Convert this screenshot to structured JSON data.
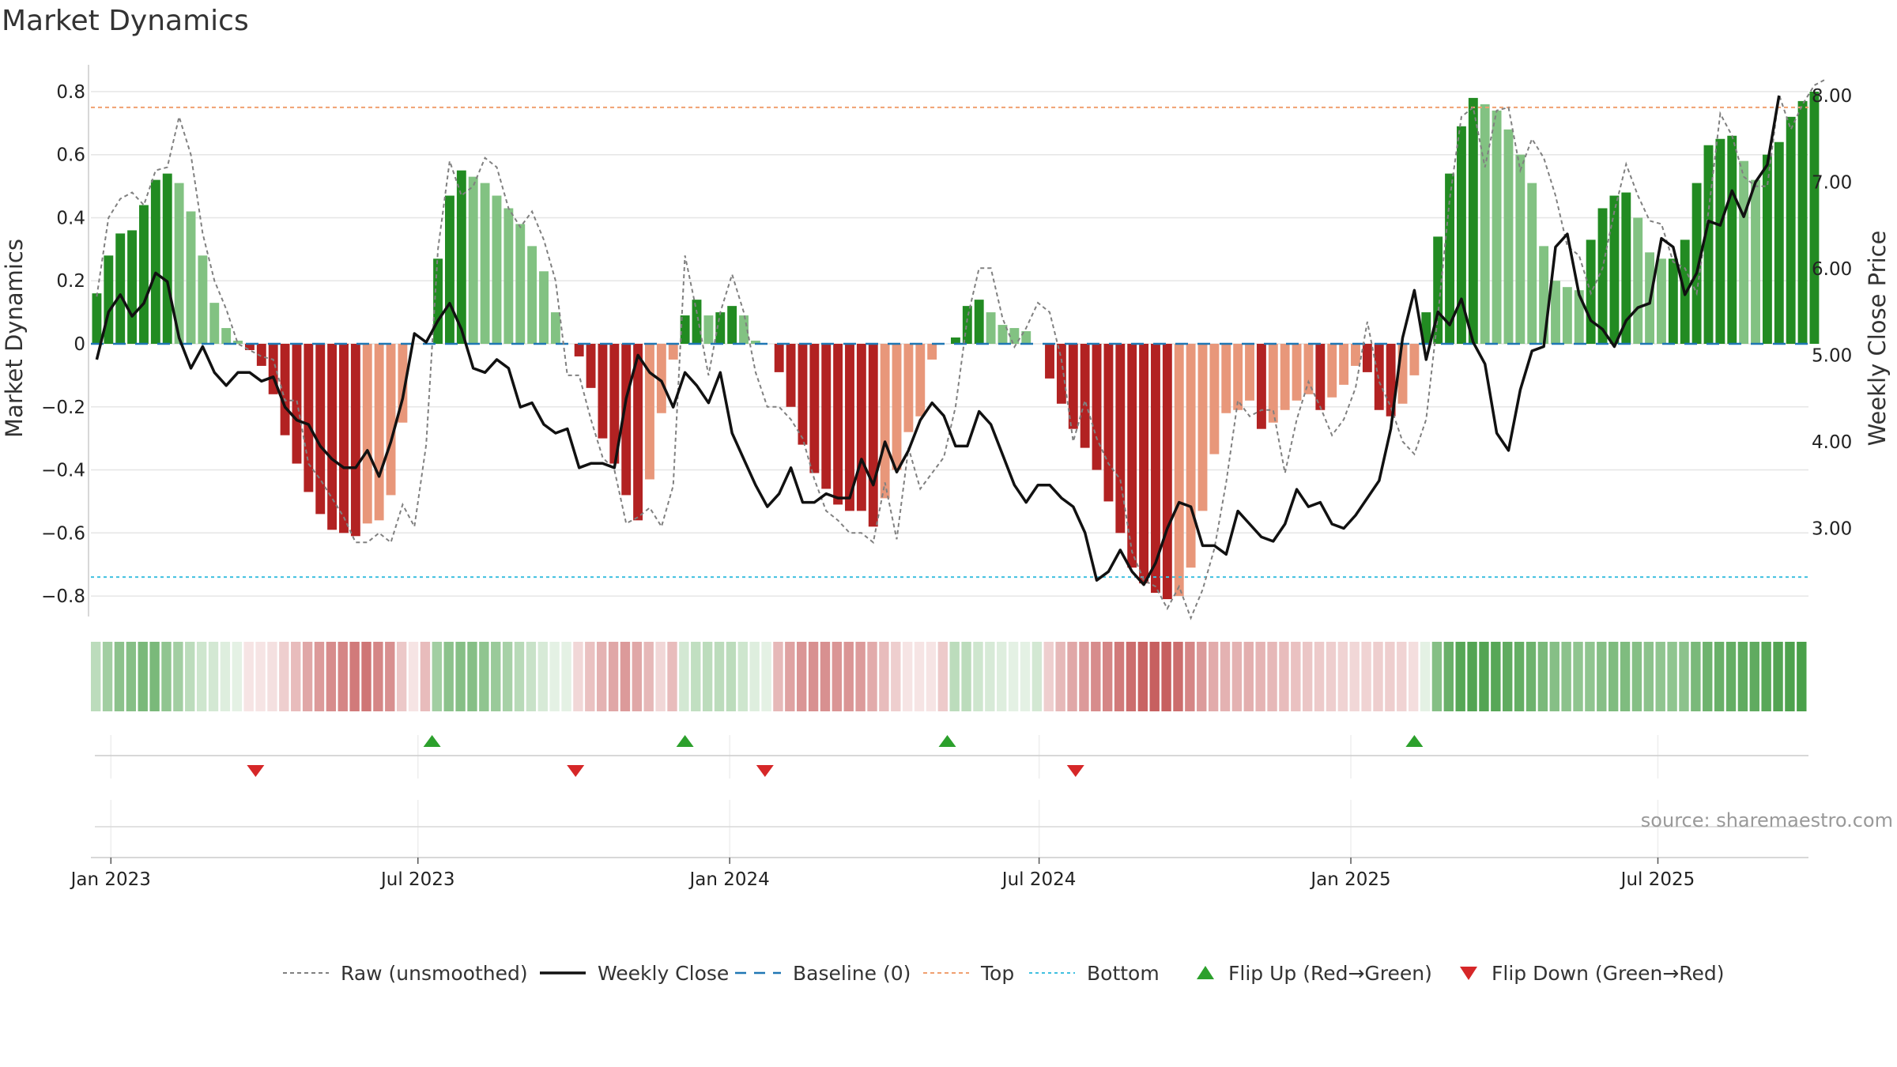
{
  "title": "Market Dynamics",
  "source_text": "source: sharemaestro.com",
  "colors": {
    "strong_green": "#228b22",
    "light_green": "#82c282",
    "strong_red": "#b22222",
    "light_red": "#e8977a",
    "top_line": "#f0a070",
    "bottom_line": "#40c0e0",
    "baseline": "#1f77b4",
    "raw_line": "#808080",
    "close_line": "#111111",
    "flip_up": "#2ca02c",
    "flip_down": "#d62728"
  },
  "legend": [
    {
      "key": "raw",
      "label": "Raw (unsmoothed)"
    },
    {
      "key": "close",
      "label": "Weekly Close"
    },
    {
      "key": "baseline",
      "label": "Baseline (0)"
    },
    {
      "key": "top",
      "label": "Top"
    },
    {
      "key": "bottom",
      "label": "Bottom"
    },
    {
      "key": "flip_up",
      "label": "Flip Up (Red→Green)"
    },
    {
      "key": "flip_down",
      "label": "Flip Down (Green→Red)"
    }
  ],
  "chart_data": {
    "type": "bar",
    "x_start_week": "2023-01-01",
    "weeks": 146,
    "ylabel": "Market Dynamics",
    "ylabel_right": "Weekly Close Price",
    "ylim": [
      -0.86,
      0.87
    ],
    "ylim_right": [
      2.0,
      8.3
    ],
    "yticks": [
      "0.8",
      "0.6",
      "0.4",
      "0.2",
      "0",
      "−0.2",
      "−0.4",
      "−0.6",
      "−0.8"
    ],
    "yticks_values": [
      0.8,
      0.6,
      0.4,
      0.2,
      0,
      -0.2,
      -0.4,
      -0.6,
      -0.8
    ],
    "yticks_right": [
      "8.00",
      "7.00",
      "6.00",
      "5.00",
      "4.00",
      "3.00"
    ],
    "yticks_right_values": [
      8,
      7,
      6,
      5,
      4,
      3
    ],
    "xticks": [
      {
        "label": "Jan 2023",
        "week": 1.2
      },
      {
        "label": "Jul 2023",
        "week": 27.3
      },
      {
        "label": "Jan 2024",
        "week": 53.8
      },
      {
        "label": "Jul 2024",
        "week": 80.1
      },
      {
        "label": "Jan 2025",
        "week": 106.6
      },
      {
        "label": "Jul 2025",
        "week": 132.7
      }
    ],
    "top_threshold": 0.75,
    "bottom_threshold": -0.74,
    "baseline": 0,
    "dynamics": [
      0.16,
      0.28,
      0.35,
      0.36,
      0.44,
      0.52,
      0.54,
      0.51,
      0.42,
      0.28,
      0.13,
      0.05,
      0.01,
      -0.02,
      -0.07,
      -0.16,
      -0.29,
      -0.38,
      -0.47,
      -0.54,
      -0.59,
      -0.6,
      -0.61,
      -0.57,
      -0.56,
      -0.48,
      -0.25,
      0.0,
      0.0,
      0.27,
      0.47,
      0.55,
      0.53,
      0.51,
      0.47,
      0.43,
      0.38,
      0.31,
      0.23,
      0.1,
      0.0,
      -0.04,
      -0.14,
      -0.3,
      -0.38,
      -0.48,
      -0.56,
      -0.43,
      -0.22,
      -0.05,
      0.09,
      0.14,
      0.09,
      0.1,
      0.12,
      0.09,
      0.01,
      0.0,
      -0.09,
      -0.2,
      -0.32,
      -0.41,
      -0.46,
      -0.51,
      -0.53,
      -0.53,
      -0.58,
      -0.49,
      -0.4,
      -0.28,
      -0.23,
      -0.05,
      0.0,
      0.02,
      0.12,
      0.14,
      0.1,
      0.06,
      0.05,
      0.04,
      0.0,
      -0.11,
      -0.19,
      -0.27,
      -0.33,
      -0.4,
      -0.5,
      -0.6,
      -0.71,
      -0.76,
      -0.79,
      -0.81,
      -0.8,
      -0.71,
      -0.53,
      -0.35,
      -0.22,
      -0.21,
      -0.18,
      -0.27,
      -0.25,
      -0.21,
      -0.18,
      -0.16,
      -0.21,
      -0.17,
      -0.13,
      -0.07,
      -0.09,
      -0.21,
      -0.23,
      -0.19,
      -0.1,
      0.1,
      0.34,
      0.54,
      0.69,
      0.78,
      0.76,
      0.74,
      0.68,
      0.6,
      0.51,
      0.31,
      0.2,
      0.18,
      0.17,
      0.33,
      0.43,
      0.47,
      0.48,
      0.4,
      0.29,
      0.27,
      0.27,
      0.33,
      0.51,
      0.63,
      0.65,
      0.66,
      0.58,
      0.52,
      0.6,
      0.64,
      0.72,
      0.77,
      0.8
    ],
    "raw": [
      0.15,
      0.4,
      0.46,
      0.48,
      0.44,
      0.55,
      0.56,
      0.72,
      0.6,
      0.35,
      0.2,
      0.11,
      0.0,
      -0.02,
      -0.04,
      -0.05,
      -0.18,
      -0.18,
      -0.38,
      -0.43,
      -0.49,
      -0.55,
      -0.63,
      -0.63,
      -0.6,
      -0.63,
      -0.51,
      -0.58,
      -0.32,
      0.3,
      0.58,
      0.47,
      0.5,
      0.59,
      0.56,
      0.43,
      0.37,
      0.42,
      0.33,
      0.2,
      -0.1,
      -0.1,
      -0.24,
      -0.36,
      -0.4,
      -0.57,
      -0.55,
      -0.52,
      -0.58,
      -0.45,
      0.28,
      0.1,
      -0.1,
      0.1,
      0.22,
      0.1,
      -0.09,
      -0.2,
      -0.2,
      -0.24,
      -0.3,
      -0.43,
      -0.53,
      -0.56,
      -0.6,
      -0.6,
      -0.63,
      -0.44,
      -0.62,
      -0.33,
      -0.46,
      -0.41,
      -0.36,
      -0.2,
      0.08,
      0.24,
      0.24,
      0.08,
      -0.01,
      0.05,
      0.13,
      0.1,
      -0.05,
      -0.31,
      -0.18,
      -0.3,
      -0.38,
      -0.43,
      -0.66,
      -0.75,
      -0.77,
      -0.84,
      -0.77,
      -0.87,
      -0.78,
      -0.65,
      -0.44,
      -0.18,
      -0.23,
      -0.21,
      -0.21,
      -0.41,
      -0.24,
      -0.12,
      -0.2,
      -0.29,
      -0.24,
      -0.14,
      0.07,
      -0.12,
      -0.2,
      -0.31,
      -0.35,
      -0.24,
      0.09,
      0.46,
      0.72,
      0.75,
      0.56,
      0.74,
      0.75,
      0.55,
      0.65,
      0.59,
      0.47,
      0.31,
      0.28,
      0.16,
      0.24,
      0.42,
      0.57,
      0.47,
      0.39,
      0.38,
      0.26,
      0.24,
      0.16,
      0.42,
      0.73,
      0.66,
      0.53,
      0.5,
      0.5,
      0.79,
      0.68,
      0.76,
      0.82,
      0.84
    ],
    "close": [
      4.95,
      5.5,
      5.7,
      5.45,
      5.6,
      5.95,
      5.85,
      5.2,
      4.85,
      5.1,
      4.8,
      4.65,
      4.8,
      4.8,
      4.7,
      4.75,
      4.4,
      4.25,
      4.2,
      3.95,
      3.8,
      3.7,
      3.7,
      3.9,
      3.6,
      4.0,
      4.5,
      5.25,
      5.15,
      5.4,
      5.6,
      5.3,
      4.85,
      4.8,
      4.95,
      4.85,
      4.4,
      4.45,
      4.2,
      4.1,
      4.15,
      3.7,
      3.75,
      3.75,
      3.7,
      4.5,
      5.0,
      4.8,
      4.7,
      4.4,
      4.8,
      4.65,
      4.45,
      4.8,
      4.1,
      3.8,
      3.5,
      3.25,
      3.4,
      3.7,
      3.3,
      3.3,
      3.4,
      3.35,
      3.35,
      3.8,
      3.5,
      4.0,
      3.65,
      3.9,
      4.25,
      4.45,
      4.3,
      3.95,
      3.95,
      4.35,
      4.2,
      3.85,
      3.5,
      3.3,
      3.5,
      3.5,
      3.35,
      3.25,
      2.95,
      2.4,
      2.5,
      2.75,
      2.5,
      2.35,
      2.6,
      3.0,
      3.3,
      3.25,
      2.8,
      2.8,
      2.7,
      3.2,
      3.05,
      2.9,
      2.85,
      3.05,
      3.45,
      3.25,
      3.3,
      3.05,
      3.0,
      3.15,
      3.35,
      3.55,
      4.15,
      5.2,
      5.75,
      4.95,
      5.5,
      5.35,
      5.65,
      5.15,
      4.9,
      4.1,
      3.9,
      4.6,
      5.05,
      5.1,
      6.25,
      6.4,
      5.7,
      5.4,
      5.3,
      5.1,
      5.4,
      5.55,
      5.6,
      6.35,
      6.25,
      5.7,
      5.95,
      6.55,
      6.5,
      6.9,
      6.6,
      7.0,
      7.2,
      8.0
    ],
    "heat": [
      0.3,
      0.42,
      0.52,
      0.55,
      0.6,
      0.6,
      0.5,
      0.42,
      0.3,
      0.22,
      0.2,
      0.15,
      0.12,
      0.05,
      0.08,
      0.14,
      0.22,
      0.3,
      0.4,
      0.46,
      0.52,
      0.55,
      0.6,
      0.62,
      0.55,
      0.5,
      0.25,
      0.12,
      0.3,
      0.42,
      0.52,
      0.55,
      0.55,
      0.5,
      0.46,
      0.4,
      0.32,
      0.25,
      0.18,
      0.06,
      0.1,
      0.18,
      0.28,
      0.35,
      0.4,
      0.46,
      0.4,
      0.32,
      0.18,
      0.3,
      0.2,
      0.28,
      0.3,
      0.3,
      0.3,
      0.22,
      0.15,
      0.08,
      0.32,
      0.42,
      0.48,
      0.5,
      0.5,
      0.48,
      0.48,
      0.45,
      0.38,
      0.3,
      0.22,
      0.12,
      0.06,
      0.12,
      0.24,
      0.3,
      0.3,
      0.22,
      0.18,
      0.15,
      0.1,
      0.06,
      0.2,
      0.22,
      0.32,
      0.4,
      0.46,
      0.52,
      0.55,
      0.6,
      0.66,
      0.7,
      0.72,
      0.72,
      0.66,
      0.55,
      0.45,
      0.38,
      0.35,
      0.35,
      0.36,
      0.34,
      0.32,
      0.3,
      0.28,
      0.26,
      0.24,
      0.22,
      0.2,
      0.18,
      0.2,
      0.22,
      0.22,
      0.2,
      0.15,
      0.1,
      0.55,
      0.68,
      0.76,
      0.78,
      0.78,
      0.76,
      0.72,
      0.7,
      0.66,
      0.6,
      0.55,
      0.52,
      0.5,
      0.5,
      0.55,
      0.58,
      0.58,
      0.55,
      0.52,
      0.5,
      0.5,
      0.52,
      0.6,
      0.65,
      0.68,
      0.7,
      0.72,
      0.72,
      0.75,
      0.78,
      0.8,
      0.82
    ],
    "flip_up_weeks": [
      28.5,
      50.0,
      72.3,
      112.0
    ],
    "flip_down_weeks": [
      13.5,
      40.7,
      56.8,
      83.2
    ],
    "event_gridline_weeks": [
      1.2,
      27.3,
      53.8,
      80.1,
      106.6,
      132.7
    ]
  }
}
